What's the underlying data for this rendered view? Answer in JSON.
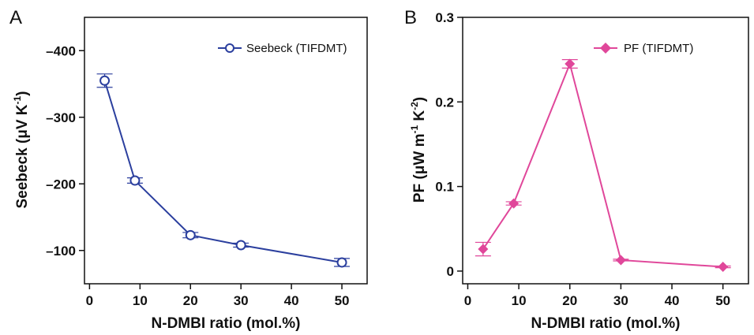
{
  "chart_data": [
    {
      "type": "line",
      "panel_label": "A",
      "xlabel": "N-DMBI ratio (mol.%)",
      "ylabel_base": "Seebeck (μV K",
      "ylabel_exp": "-1",
      "ylabel_close": ")",
      "xlim": [
        -1,
        55
      ],
      "ylim": [
        -50,
        -450
      ],
      "x_ticks": [
        0,
        10,
        20,
        30,
        40,
        50
      ],
      "y_ticks": [
        -100,
        -200,
        -300,
        -400
      ],
      "y_tick_labels": [
        "–100",
        "–200",
        "–300",
        "–400"
      ],
      "series": [
        {
          "name": "Seebeck (TIFDMT)",
          "color": "#2b3f9e",
          "marker": "open-circle",
          "x": [
            3,
            9,
            20,
            30,
            50
          ],
          "y": [
            -355,
            -205,
            -123,
            -108,
            -82
          ],
          "yerr": [
            10,
            4,
            4,
            3,
            6
          ]
        }
      ],
      "legend": "top-right",
      "grid": false
    },
    {
      "type": "line",
      "panel_label": "B",
      "xlabel": "N-DMBI ratio (mol.%)",
      "ylabel_base": "PF (μW m",
      "ylabel_exp1": "-1",
      "ylabel_mid": " K",
      "ylabel_exp2": "-2",
      "ylabel_close": ")",
      "xlim": [
        -1,
        55
      ],
      "ylim": [
        -0.015,
        0.3
      ],
      "x_ticks": [
        0,
        10,
        20,
        30,
        40,
        50
      ],
      "y_ticks": [
        0,
        0.1,
        0.2,
        0.3
      ],
      "y_tick_labels": [
        "0",
        "0.1",
        "0.2",
        "0.3"
      ],
      "series": [
        {
          "name": "PF (TIFDMT)",
          "color": "#e0479a",
          "marker": "filled-diamond",
          "x": [
            3,
            9,
            20,
            30,
            50
          ],
          "y": [
            0.026,
            0.08,
            0.245,
            0.013,
            0.005
          ],
          "yerr": [
            0.008,
            0.002,
            0.005,
            0.001,
            0.001
          ]
        }
      ],
      "legend": "top-right",
      "grid": false
    }
  ]
}
